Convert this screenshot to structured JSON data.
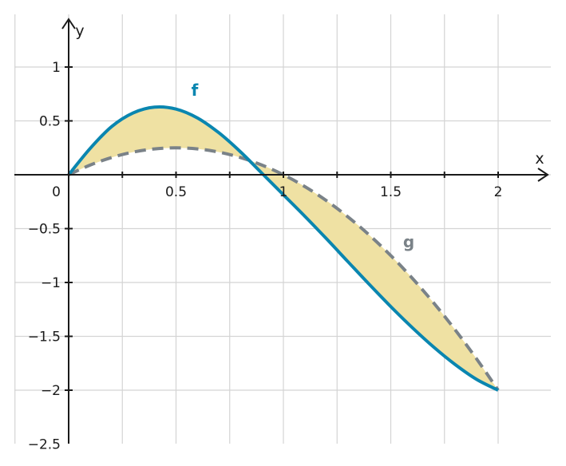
{
  "chart_data": {
    "type": "area",
    "xlabel": "x",
    "ylabel": "y",
    "xlim": [
      -0.5,
      2.25
    ],
    "ylim": [
      -2.5,
      1.5
    ],
    "grid": true,
    "x_ticks": [
      0.5,
      1,
      1.5,
      2
    ],
    "x_tick_labels": [
      "0.5",
      "1",
      "1.5",
      "2"
    ],
    "y_ticks": [
      1,
      0.5,
      -0.5,
      -1,
      -1.5,
      -2,
      -2.5
    ],
    "y_tick_labels": [
      "1",
      "0.5",
      "−0.5",
      "−1",
      "−1.5",
      "−2",
      "−2.5"
    ],
    "origin_label": "0",
    "series": [
      {
        "name": "f",
        "color": "#0a86b0",
        "style": "solid",
        "x": [
          0,
          0.1,
          0.2,
          0.3,
          0.4,
          0.5,
          0.6,
          0.7,
          0.8,
          0.9,
          1.0,
          1.1,
          1.2,
          1.3,
          1.4,
          1.5,
          1.6,
          1.7,
          1.8,
          1.9,
          2.0
        ],
        "values": [
          0,
          0.244,
          0.447,
          0.574,
          0.628,
          0.61,
          0.527,
          0.389,
          0.213,
          0.014,
          -0.186,
          -0.386,
          -0.593,
          -0.806,
          -1.018,
          -1.224,
          -1.419,
          -1.6,
          -1.762,
          -1.9,
          -2.0
        ]
      },
      {
        "name": "g",
        "color": "#7a8288",
        "style": "dashed",
        "x": [
          0,
          0.1,
          0.2,
          0.3,
          0.4,
          0.5,
          0.6,
          0.7,
          0.8,
          0.9,
          1.0,
          1.1,
          1.2,
          1.3,
          1.4,
          1.5,
          1.6,
          1.7,
          1.8,
          1.9,
          2.0
        ],
        "values": [
          0,
          0.09,
          0.16,
          0.21,
          0.24,
          0.25,
          0.24,
          0.21,
          0.16,
          0.09,
          0,
          -0.11,
          -0.24,
          -0.39,
          -0.56,
          -0.75,
          -0.96,
          -1.19,
          -1.44,
          -1.71,
          -2.0
        ]
      }
    ],
    "fill_between": {
      "series": [
        "f",
        "g"
      ],
      "color": "#efe1a3"
    }
  }
}
